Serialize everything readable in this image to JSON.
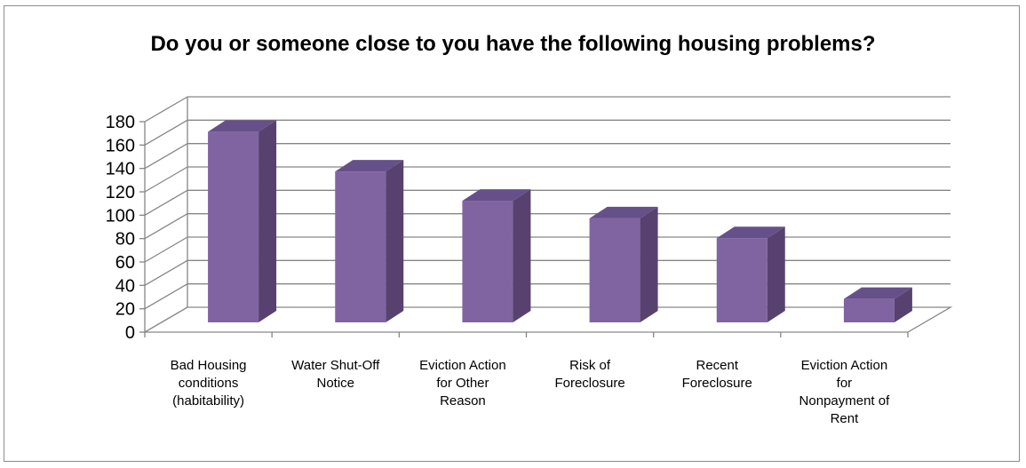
{
  "chart_data": {
    "type": "bar",
    "title": "Do you or someone close to you have the following housing problems?",
    "categories": [
      "Bad Housing conditions (habitability)",
      "Water Shut-Off Notice",
      "Eviction Action for Other Reason",
      "Risk of Foreclosure",
      "Recent Foreclosure",
      "Eviction Action for Nonpayment of Rent"
    ],
    "category_lines": [
      [
        "Bad Housing",
        "conditions",
        "(habitability)"
      ],
      [
        "Water Shut-Off",
        "Notice"
      ],
      [
        "Eviction Action",
        "for Other",
        "Reason"
      ],
      [
        "Risk of",
        "Foreclosure"
      ],
      [
        "Recent",
        "Foreclosure"
      ],
      [
        "Eviction Action",
        "for",
        "Nonpayment of",
        "Rent"
      ]
    ],
    "values": [
      163,
      129,
      104,
      89,
      72,
      20
    ],
    "yticks": [
      0,
      20,
      40,
      60,
      80,
      100,
      120,
      140,
      160,
      180
    ],
    "ylim": [
      0,
      180
    ],
    "xlabel": "",
    "ylabel": "",
    "grid": true,
    "legend": "none",
    "style": "3d-column",
    "colors": {
      "bar_front": "#8064A2",
      "bar_side": "#57426F",
      "bar_top": "#66508A",
      "grid": "#868686",
      "axis": "#868686"
    }
  }
}
